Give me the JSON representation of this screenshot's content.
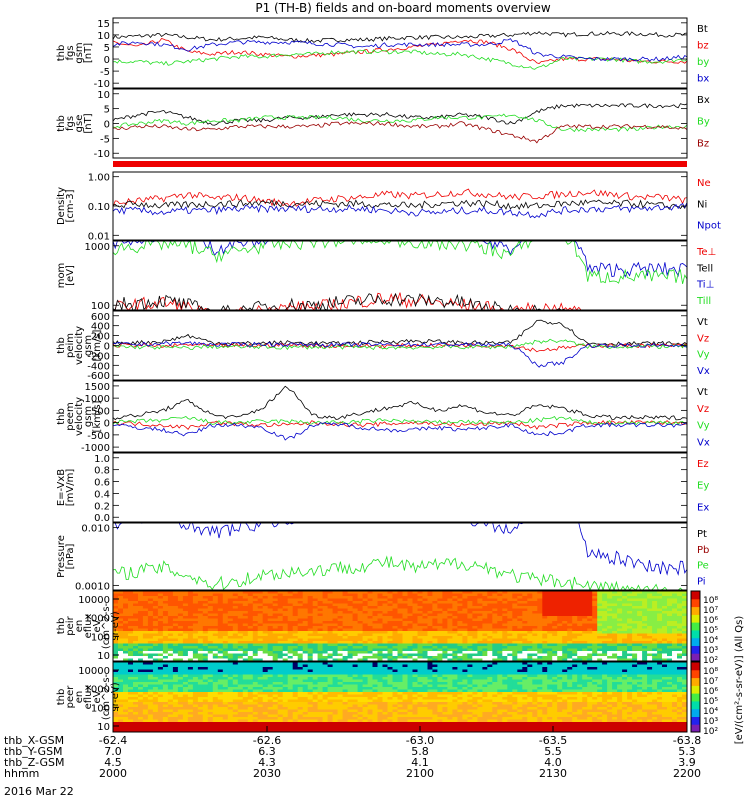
{
  "title": "P1 (TH-B) fields and on-board moments overview",
  "colors": {
    "black": "#000000",
    "red": "#ee0000",
    "green": "#22dd22",
    "blue": "#0000cc",
    "darkred": "#990000"
  },
  "chart_data": [
    {
      "type": "line",
      "ylabel": [
        "thb",
        "fgs",
        "gsm",
        "[nT]"
      ],
      "yticks": [
        "15",
        "10",
        "5",
        "0",
        "-5",
        "-10"
      ],
      "series": [
        {
          "name": "Bt",
          "color": "black",
          "values": [
            9,
            9.5,
            10,
            9,
            8,
            8.5,
            9,
            8,
            7.5,
            8,
            8,
            8.5,
            9,
            9,
            9,
            9.5,
            10,
            11,
            10,
            10.5,
            10.5,
            10.5,
            10,
            10
          ]
        },
        {
          "name": "bz",
          "color": "red",
          "values": [
            7,
            5,
            8,
            3,
            2,
            3,
            2,
            1,
            1.5,
            2,
            3,
            4,
            5,
            6,
            8,
            7,
            4,
            -2,
            0,
            0,
            0,
            -1,
            -1,
            -1
          ]
        },
        {
          "name": "by",
          "color": "green",
          "values": [
            -1,
            -1,
            -2,
            -1,
            0,
            1,
            1,
            2,
            2,
            3,
            3,
            3,
            3,
            2,
            2,
            0,
            -2,
            -4,
            0,
            0,
            0,
            -1,
            -1,
            0
          ]
        },
        {
          "name": "bx",
          "color": "blue",
          "values": [
            6,
            7,
            6,
            4,
            6,
            7,
            7,
            7,
            6.5,
            6,
            5,
            6,
            6,
            6,
            6,
            6,
            8,
            2,
            1,
            0,
            0,
            0,
            0,
            1
          ]
        }
      ]
    },
    {
      "type": "line",
      "ylabel": [
        "thb",
        "fgs",
        "gse",
        "[nT]"
      ],
      "yticks": [
        "10",
        "5",
        "0",
        "-5",
        "-10"
      ],
      "series": [
        {
          "name": "Bx",
          "color": "black",
          "values": [
            1,
            3,
            4,
            2,
            0,
            1,
            1,
            2,
            2,
            3,
            3,
            3,
            2,
            2,
            3,
            2,
            0,
            4,
            6,
            6,
            6,
            6,
            6,
            6
          ]
        },
        {
          "name": "By",
          "color": "green",
          "values": [
            -1,
            0,
            1,
            0,
            1,
            1,
            2,
            2,
            2,
            2,
            1,
            1,
            1,
            2,
            2,
            2,
            3,
            1,
            -2,
            -2,
            -2,
            -2,
            -1,
            -1
          ]
        },
        {
          "name": "Bz",
          "color": "darkred",
          "values": [
            -2,
            -1,
            -1,
            -2,
            -2,
            -1,
            -1,
            -1,
            -1,
            0,
            0,
            0,
            -1,
            -1,
            0,
            -2,
            -4,
            -6,
            -1,
            -1,
            -1,
            -1,
            -1,
            -2
          ]
        }
      ]
    },
    {
      "type": "line",
      "log": true,
      "ylabel": [
        "Density",
        "[cm-3]"
      ],
      "yticks": [
        "1.00",
        "0.10",
        "0.01"
      ],
      "series": [
        {
          "name": "Ne",
          "color": "red",
          "values": [
            0.12,
            0.15,
            0.18,
            0.25,
            0.18,
            0.2,
            0.15,
            0.12,
            0.15,
            0.18,
            0.2,
            0.25,
            0.22,
            0.25,
            0.3,
            0.25,
            0.2,
            0.22,
            0.25,
            0.3,
            0.25,
            0.2,
            0.2,
            0.15
          ]
        },
        {
          "name": "Ni",
          "color": "black",
          "values": [
            0.1,
            0.12,
            0.1,
            0.11,
            0.12,
            0.12,
            0.13,
            0.12,
            0.12,
            0.12,
            0.12,
            0.11,
            0.1,
            0.12,
            0.13,
            0.12,
            0.1,
            0.1,
            0.12,
            0.13,
            0.12,
            0.12,
            0.1,
            0.1
          ]
        },
        {
          "name": "Npot",
          "color": "blue",
          "values": [
            0.07,
            0.07,
            0.06,
            0.07,
            0.07,
            0.08,
            0.08,
            0.08,
            0.08,
            0.08,
            0.08,
            0.07,
            0.06,
            0.06,
            0.07,
            0.07,
            0.06,
            0.05,
            0.07,
            0.08,
            0.08,
            0.08,
            0.09,
            0.1
          ]
        }
      ]
    },
    {
      "type": "line",
      "log": true,
      "ylabel": [
        "mom",
        "[eV]"
      ],
      "yticks": [
        "1000",
        "100"
      ],
      "series": [
        {
          "name": "Te⊥",
          "color": "red",
          "values": [
            90,
            100,
            110,
            90,
            60,
            70,
            80,
            90,
            90,
            100,
            120,
            130,
            120,
            110,
            100,
            90,
            70,
            90,
            80,
            70,
            60,
            60,
            60,
            60
          ]
        },
        {
          "name": "Tell",
          "color": "black",
          "values": [
            100,
            110,
            120,
            100,
            70,
            80,
            90,
            100,
            100,
            110,
            120,
            130,
            120,
            120,
            110,
            90,
            80,
            80,
            70,
            60,
            60,
            60,
            60,
            60
          ]
        },
        {
          "name": "Ti⊥",
          "color": "blue",
          "values": [
            1200,
            1400,
            1600,
            1500,
            900,
            1100,
            1300,
            1500,
            1700,
            1800,
            1900,
            2000,
            1800,
            1700,
            1600,
            1200,
            900,
            2500,
            2600,
            400,
            400,
            400,
            400,
            400
          ]
        },
        {
          "name": "Till",
          "color": "green",
          "values": [
            900,
            1000,
            1100,
            1000,
            700,
            800,
            1000,
            1100,
            1200,
            1200,
            1300,
            1300,
            1200,
            1100,
            1100,
            900,
            700,
            1500,
            1600,
            300,
            300,
            300,
            300,
            300
          ]
        }
      ]
    },
    {
      "type": "line",
      "ylabel": [
        "thb",
        "peim",
        "velocity",
        "gsm",
        "[km/s]"
      ],
      "yticks": [
        "600",
        "400",
        "200",
        "0",
        "-200",
        "-400",
        "-600"
      ],
      "series": [
        {
          "name": "Vt",
          "color": "black",
          "values": [
            50,
            60,
            80,
            200,
            60,
            40,
            50,
            60,
            50,
            40,
            60,
            80,
            90,
            80,
            60,
            50,
            60,
            500,
            450,
            40,
            40,
            40,
            40,
            40
          ]
        },
        {
          "name": "Vz",
          "color": "red",
          "values": [
            0,
            10,
            -20,
            20,
            -10,
            0,
            0,
            10,
            0,
            -10,
            0,
            -10,
            0,
            0,
            10,
            0,
            0,
            -100,
            -50,
            0,
            0,
            0,
            0,
            0
          ]
        },
        {
          "name": "Vy",
          "color": "green",
          "values": [
            -20,
            -30,
            -40,
            -50,
            -20,
            -30,
            -30,
            -40,
            -30,
            -30,
            -40,
            -40,
            -40,
            -30,
            -30,
            -30,
            -20,
            80,
            100,
            -20,
            -20,
            -20,
            -20,
            -20
          ]
        },
        {
          "name": "Vx",
          "color": "blue",
          "values": [
            30,
            20,
            40,
            50,
            20,
            20,
            30,
            20,
            20,
            10,
            20,
            20,
            20,
            20,
            20,
            20,
            10,
            -400,
            -350,
            0,
            0,
            0,
            0,
            0
          ]
        }
      ]
    },
    {
      "type": "line",
      "ylabel": [
        "thb",
        "peem",
        "velocity",
        "gsm",
        "[km/s]"
      ],
      "yticks": [
        "1500",
        "1000",
        "500",
        "0",
        "-500",
        "-1000"
      ],
      "series": [
        {
          "name": "Vt",
          "color": "black",
          "values": [
            200,
            300,
            500,
            900,
            300,
            200,
            600,
            1500,
            300,
            200,
            400,
            600,
            800,
            500,
            700,
            400,
            300,
            700,
            600,
            300,
            200,
            200,
            200,
            200
          ]
        },
        {
          "name": "Vz",
          "color": "red",
          "values": [
            0,
            -50,
            -100,
            -200,
            0,
            -50,
            -100,
            -100,
            0,
            -50,
            -100,
            -50,
            0,
            -50,
            -100,
            -50,
            0,
            -200,
            -100,
            0,
            0,
            0,
            0,
            0
          ]
        },
        {
          "name": "Vy",
          "color": "green",
          "values": [
            0,
            50,
            100,
            200,
            0,
            0,
            50,
            50,
            0,
            0,
            50,
            100,
            50,
            0,
            50,
            0,
            0,
            100,
            200,
            0,
            0,
            0,
            0,
            0
          ]
        },
        {
          "name": "Vx",
          "color": "blue",
          "values": [
            -100,
            -200,
            -300,
            -500,
            -100,
            -100,
            -200,
            -700,
            -100,
            -50,
            -200,
            -300,
            -300,
            -200,
            -300,
            -200,
            -100,
            -500,
            -400,
            -100,
            -100,
            -100,
            -100,
            -100
          ]
        }
      ]
    },
    {
      "type": "line",
      "ylabel": [
        "E=-VxB",
        "[mV/m]"
      ],
      "yticks": [
        "1.0",
        "0.8",
        "0.6",
        "0.4",
        "0.2",
        "0.0"
      ],
      "series": [
        {
          "name": "Ez",
          "color": "red",
          "values": []
        },
        {
          "name": "Ey",
          "color": "green",
          "values": []
        },
        {
          "name": "Ex",
          "color": "blue",
          "values": []
        }
      ]
    },
    {
      "type": "line",
      "log": true,
      "ylabel": [
        "Pressure",
        "[nPa]"
      ],
      "yticks": [
        "0.010",
        "0.0010"
      ],
      "series": [
        {
          "name": "Pt",
          "color": "black",
          "values": [
            0.04,
            0.045,
            0.05,
            0.045,
            0.04,
            0.045,
            0.045,
            0.045,
            0.045,
            0.045,
            0.05,
            0.05,
            0.05,
            0.05,
            0.05,
            0.045,
            0.045,
            0.05,
            0.05,
            0.045,
            0.045,
            0.045,
            0.045,
            0.045
          ]
        },
        {
          "name": "Pb",
          "color": "darkred",
          "values": [
            0.03,
            0.035,
            0.04,
            0.03,
            0.025,
            0.028,
            0.03,
            0.028,
            0.026,
            0.028,
            0.03,
            0.032,
            0.035,
            0.035,
            0.04,
            0.035,
            0.03,
            0.02,
            0.03,
            0.03,
            0.03,
            0.03,
            0.03,
            0.03
          ]
        },
        {
          "name": "Pe",
          "color": "green",
          "values": [
            0.0015,
            0.0018,
            0.002,
            0.0015,
            0.001,
            0.0012,
            0.0015,
            0.0017,
            0.0018,
            0.002,
            0.0022,
            0.0025,
            0.002,
            0.0022,
            0.0025,
            0.002,
            0.0015,
            0.0012,
            0.0012,
            0.001,
            0.0009,
            0.0008,
            0.0008,
            0.0008
          ]
        },
        {
          "name": "Pi",
          "color": "blue",
          "values": [
            0.012,
            0.014,
            0.016,
            0.012,
            0.008,
            0.01,
            0.012,
            0.014,
            0.016,
            0.018,
            0.02,
            0.02,
            0.018,
            0.016,
            0.015,
            0.012,
            0.008,
            0.025,
            0.025,
            0.004,
            0.003,
            0.0025,
            0.002,
            0.002
          ]
        }
      ]
    },
    {
      "type": "heatmap",
      "ylabel": [
        "thb",
        "peir",
        "en",
        "eflux",
        "eV",
        "(cm^2-s-",
        "sr-eV)"
      ],
      "yticks": [
        "10000",
        "1000",
        "100",
        "10"
      ]
    },
    {
      "type": "heatmap",
      "ylabel": [
        "thb",
        "peer",
        "en",
        "eflux",
        "eV",
        "(cm^2-s-",
        "sr-eV)"
      ],
      "yticks": [
        "10000",
        "1000",
        "100",
        "10"
      ]
    }
  ],
  "colorbars": [
    {
      "labels": [
        "10⁸",
        "10⁷",
        "10⁶",
        "10⁵",
        "10⁴",
        "10³",
        "10²"
      ]
    },
    {
      "labels": [
        "10⁸",
        "10⁷",
        "10⁶",
        "10⁵",
        "10⁴",
        "10³",
        "10²"
      ]
    }
  ],
  "colorbar_title": "[eV/(cm²-s-sr-eV)] (All Qs)",
  "xaxis": {
    "rows": [
      {
        "label": "thb_X-GSM",
        "values": [
          "-62.4",
          "-62.6",
          "-63.0",
          "-63.5",
          "-63.8"
        ]
      },
      {
        "label": "thb_Y-GSM",
        "values": [
          "7.0",
          "6.3",
          "5.8",
          "5.5",
          "5.3"
        ]
      },
      {
        "label": "thb_Z-GSM",
        "values": [
          "4.5",
          "4.3",
          "4.1",
          "4.0",
          "3.9"
        ]
      },
      {
        "label": "hhmm",
        "values": [
          "2000",
          "2030",
          "2100",
          "2130",
          "2200"
        ]
      }
    ],
    "date": "2016 Mar 22"
  }
}
